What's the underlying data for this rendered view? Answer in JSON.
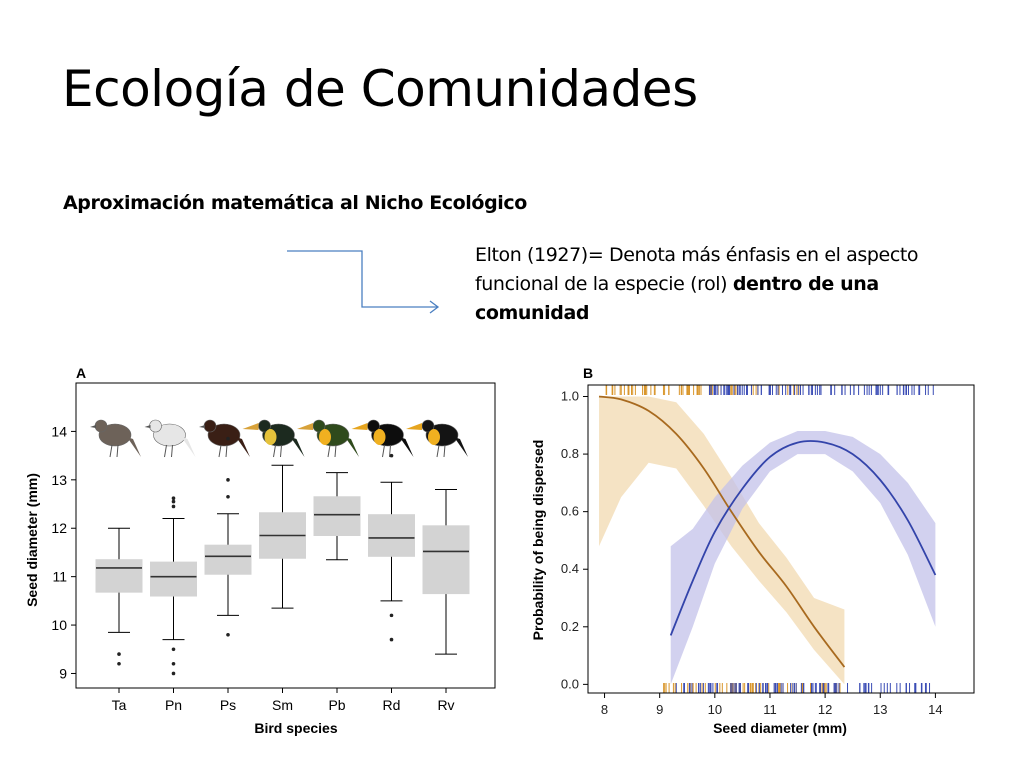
{
  "slide": {
    "title": "Ecología de Comunidades",
    "subtitle": "Aproximación matemática al Nicho Ecológico",
    "elton_text": "Elton (1927)= Denota más énfasis en el aspecto funcional de la especie (rol) ",
    "elton_bold": "dentro de una comunidad"
  },
  "colors": {
    "box_fill": "#d3d3d3",
    "series_a": "#a86a1f",
    "series_a_band": "#f2d9b0",
    "series_b": "#3344aa",
    "series_b_band": "#c3c2ea",
    "arrow": "#4a7fc1"
  },
  "chart_data": [
    {
      "type": "box",
      "panel_label": "A",
      "xlabel": "Bird species",
      "ylabel": "Seed diameter (mm)",
      "ylim": [
        8.7,
        15.0
      ],
      "yticks": [
        9,
        10,
        11,
        12,
        13,
        14
      ],
      "categories": [
        "Ta",
        "Pn",
        "Ps",
        "Sm",
        "Pb",
        "Rd",
        "Rv"
      ],
      "boxes": [
        {
          "low": 9.85,
          "q1": 10.68,
          "median": 11.18,
          "q3": 11.35,
          "high": 12.0,
          "outliers": [
            9.4,
            9.2
          ]
        },
        {
          "low": 9.7,
          "q1": 10.6,
          "median": 11.0,
          "q3": 11.3,
          "high": 12.2,
          "outliers": [
            12.45,
            12.55,
            12.62,
            9.5,
            9.2,
            9.0
          ]
        },
        {
          "low": 10.2,
          "q1": 11.05,
          "median": 11.42,
          "q3": 11.65,
          "high": 12.3,
          "outliers": [
            12.65,
            13.0,
            13.85,
            9.8
          ]
        },
        {
          "low": 10.35,
          "q1": 11.38,
          "median": 11.85,
          "q3": 12.32,
          "high": 13.3
        },
        {
          "low": 11.35,
          "q1": 11.85,
          "median": 12.28,
          "q3": 12.65,
          "high": 13.15
        },
        {
          "low": 10.5,
          "q1": 11.42,
          "median": 11.8,
          "q3": 12.28,
          "high": 12.95,
          "outliers": [
            13.5,
            10.2,
            9.7
          ]
        },
        {
          "low": 9.4,
          "q1": 10.65,
          "median": 11.52,
          "q3": 12.05,
          "high": 12.8
        }
      ],
      "bird_colors": [
        "#6d6259",
        "#e6e6e6",
        "#3a1f15",
        "#1c2a1f",
        "#2f4a1c",
        "#0d0d0d",
        "#141414"
      ]
    },
    {
      "type": "line",
      "panel_label": "B",
      "xlabel": "Seed diameter (mm)",
      "ylabel": "Probability of being dispersed",
      "xlim": [
        7.7,
        14.7
      ],
      "ylim": [
        -0.03,
        1.04
      ],
      "xticks": [
        8,
        9,
        10,
        11,
        12,
        13,
        14
      ],
      "yticks": [
        0.0,
        0.2,
        0.4,
        0.6,
        0.8,
        1.0
      ],
      "series": [
        {
          "color_key": "series_a",
          "x": [
            7.9,
            8.3,
            8.8,
            9.3,
            9.8,
            10.3,
            10.8,
            11.3,
            11.8,
            12.35
          ],
          "y": [
            1.0,
            0.99,
            0.95,
            0.87,
            0.75,
            0.6,
            0.46,
            0.34,
            0.2,
            0.06
          ],
          "lower": [
            0.48,
            0.65,
            0.77,
            0.75,
            0.62,
            0.48,
            0.36,
            0.25,
            0.12,
            0.0
          ],
          "upper": [
            1.0,
            1.0,
            1.0,
            0.98,
            0.87,
            0.72,
            0.56,
            0.44,
            0.3,
            0.26
          ]
        },
        {
          "color_key": "series_b",
          "x": [
            9.2,
            9.6,
            10.0,
            10.5,
            11.0,
            11.5,
            12.0,
            12.5,
            13.0,
            13.5,
            14.0
          ],
          "y": [
            0.17,
            0.36,
            0.53,
            0.68,
            0.79,
            0.84,
            0.84,
            0.8,
            0.71,
            0.57,
            0.38
          ],
          "lower": [
            0.0,
            0.2,
            0.42,
            0.61,
            0.74,
            0.8,
            0.8,
            0.74,
            0.63,
            0.45,
            0.2
          ],
          "upper": [
            0.48,
            0.54,
            0.65,
            0.76,
            0.84,
            0.88,
            0.88,
            0.86,
            0.8,
            0.7,
            0.56
          ]
        }
      ]
    }
  ]
}
